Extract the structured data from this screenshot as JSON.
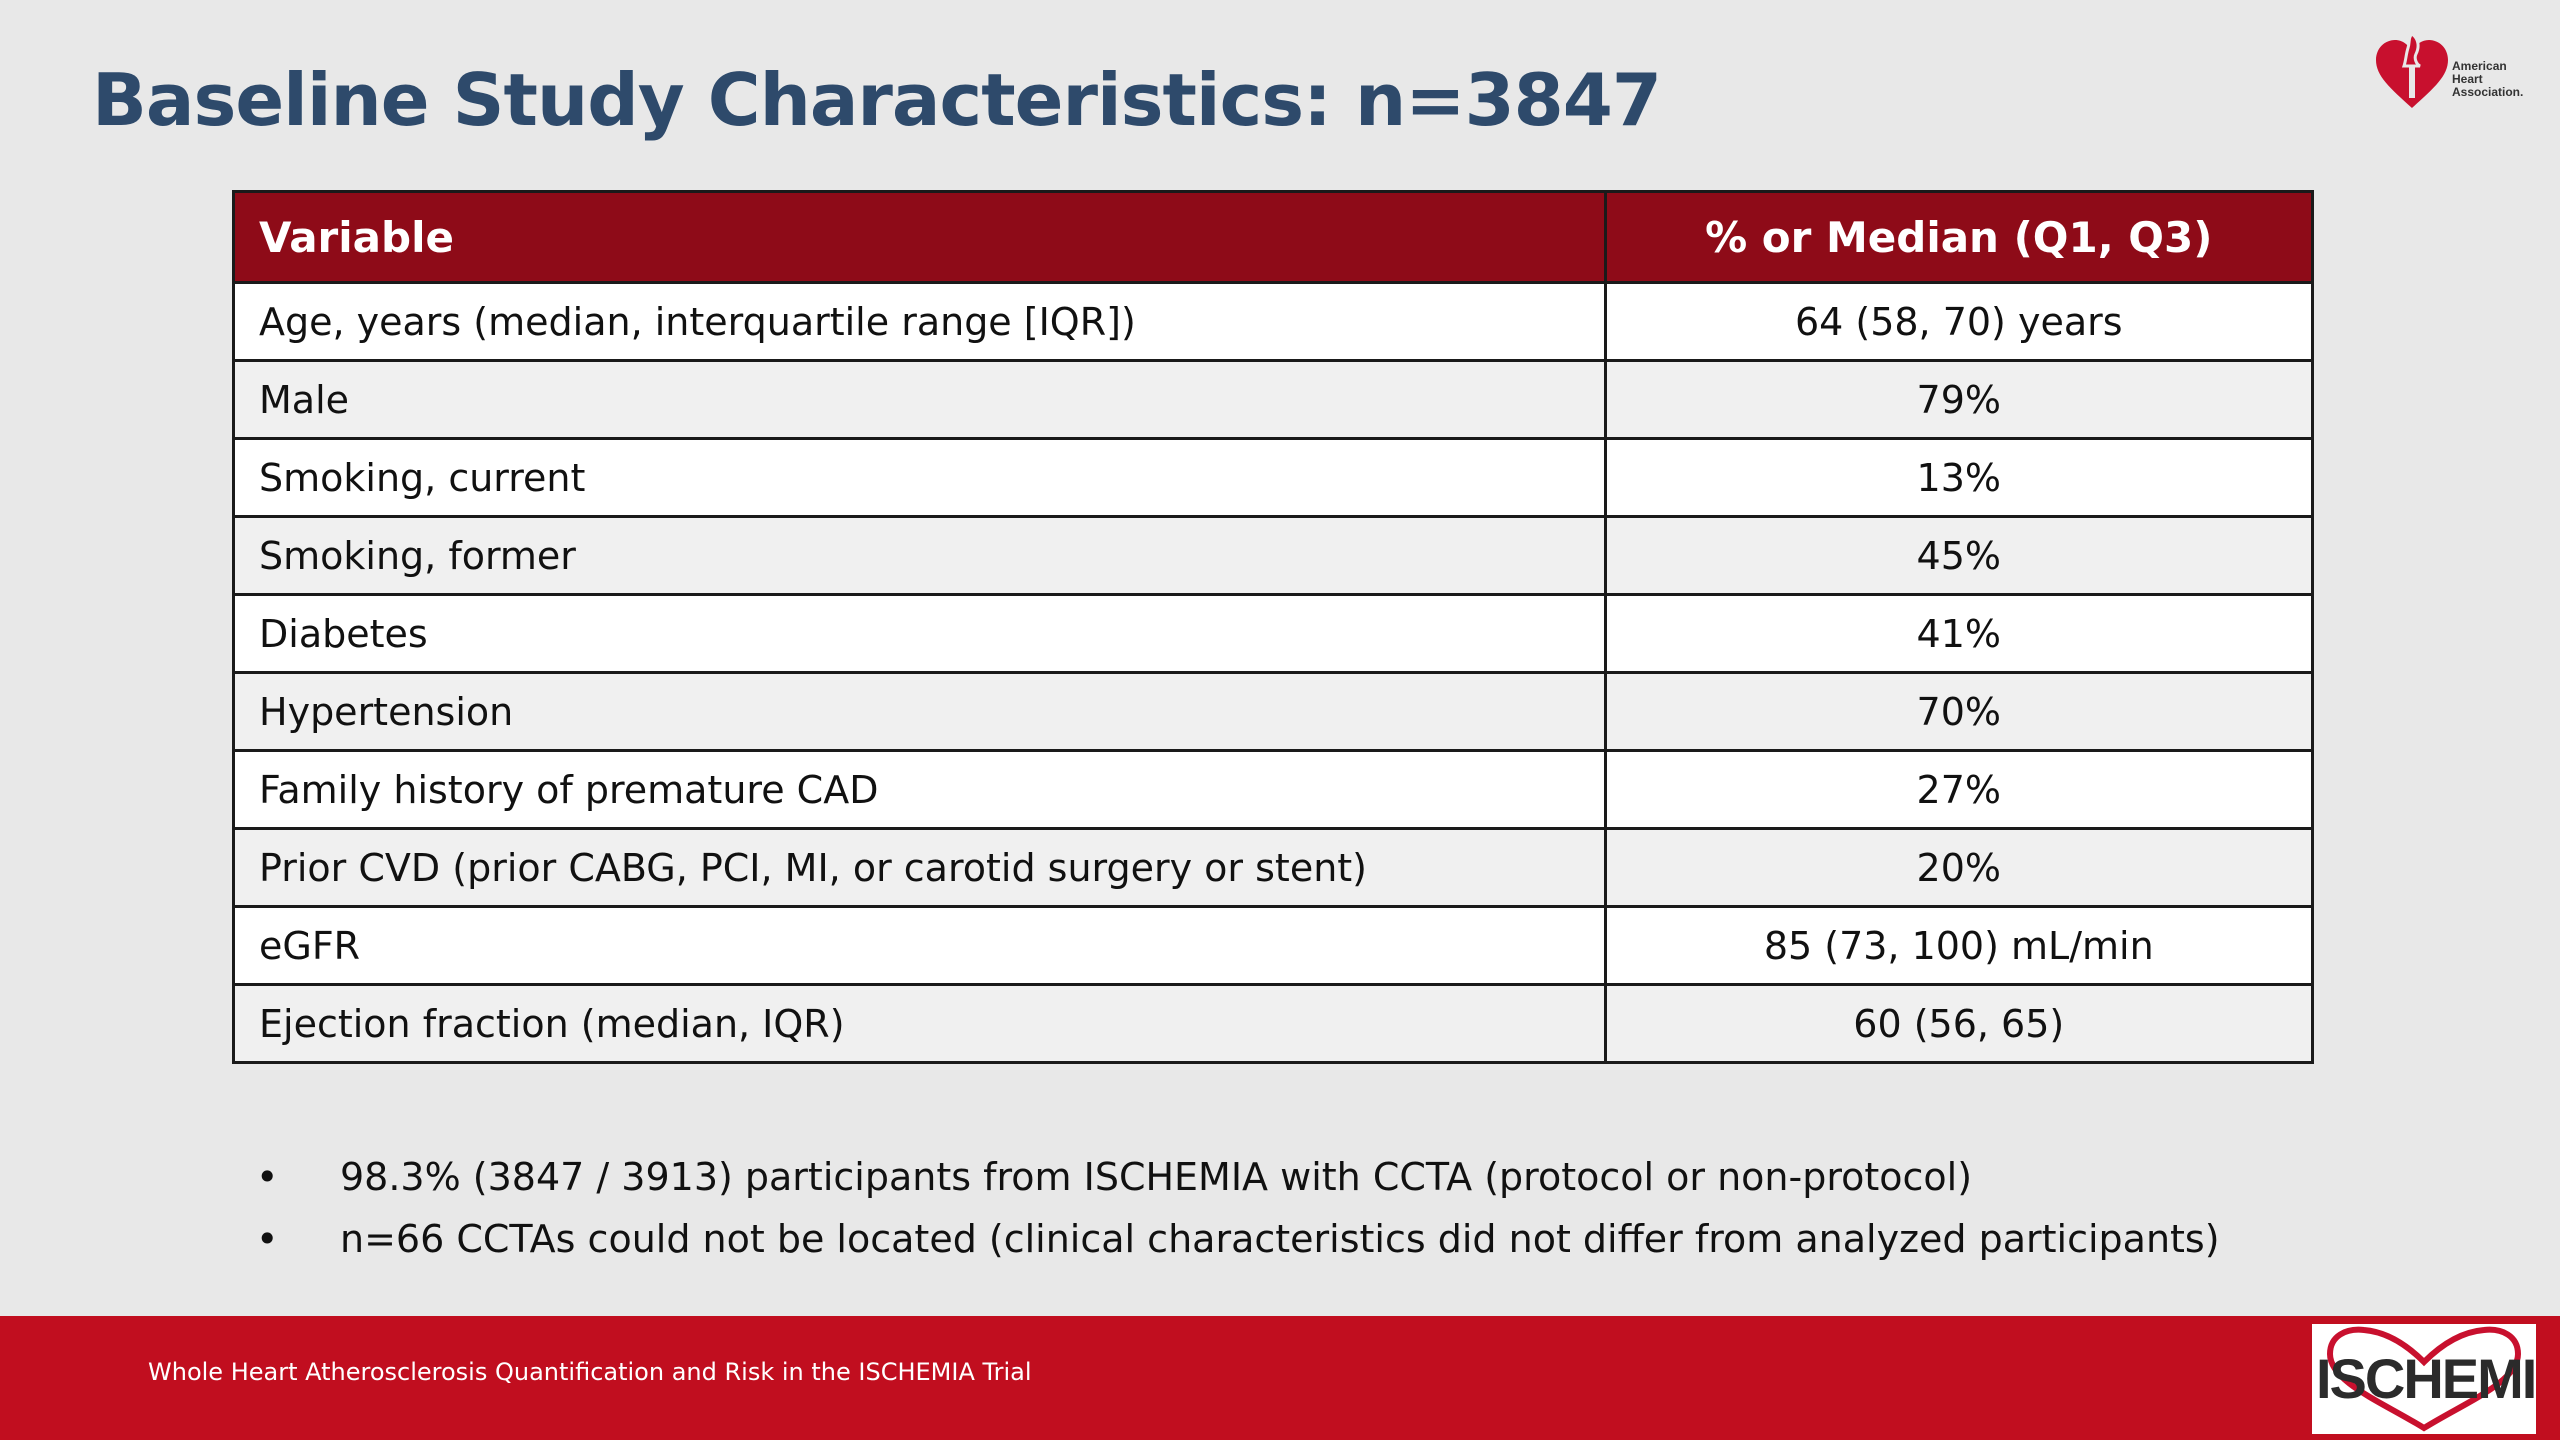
{
  "slide": {
    "title": "Baseline Study Characteristics: n=3847"
  },
  "logo": {
    "organization_lines": [
      "American",
      "Heart",
      "Association."
    ],
    "icon": "heart-torch-icon",
    "brand_color": "#c8102e"
  },
  "table": {
    "headers": [
      "Variable",
      "% or Median (Q1, Q3)"
    ],
    "header_color": "#8e0b18",
    "rows": [
      {
        "variable": "Age, years (median, interquartile range [IQR])",
        "value": "64 (58, 70) years"
      },
      {
        "variable": "Male",
        "value": "79%"
      },
      {
        "variable": "Smoking, current",
        "value": "13%"
      },
      {
        "variable": "Smoking, former",
        "value": "45%"
      },
      {
        "variable": "Diabetes",
        "value": "41%"
      },
      {
        "variable": "Hypertension",
        "value": "70%"
      },
      {
        "variable": "Family history of premature CAD",
        "value": "27%"
      },
      {
        "variable": "Prior CVD (prior CABG, PCI, MI, or carotid surgery or stent)",
        "value": "20%"
      },
      {
        "variable": "eGFR",
        "value": "85 (73, 100) mL/min"
      },
      {
        "variable": "Ejection fraction (median, IQR)",
        "value": "60 (56, 65)"
      }
    ]
  },
  "bullets": [
    {
      "marker": "•",
      "text": "98.3% (3847 / 3913) participants from ISCHEMIA with CCTA (protocol or non-protocol)"
    },
    {
      "marker": "•",
      "text": "n=66 CCTAs could not be located (clinical characteristics did not differ from analyzed participants)"
    }
  ],
  "footer": {
    "text": "Whole Heart Atherosclerosis Quantification and Risk in the ISCHEMIA Trial",
    "color": "#c10e1f"
  },
  "trial_logo": {
    "text": "ISCHEMIA",
    "icon": "heart-outline-icon"
  }
}
